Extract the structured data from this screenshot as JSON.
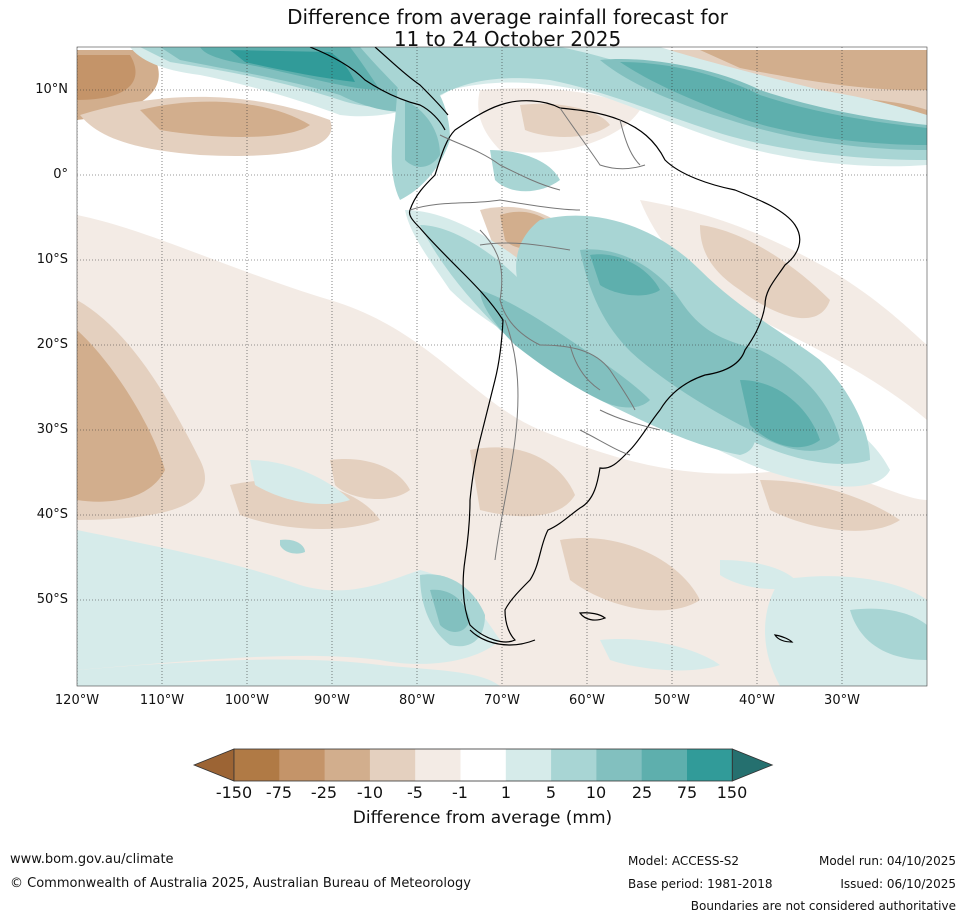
{
  "title": {
    "line1": "Difference from average rainfall forecast for",
    "line2": "11 to 24 October 2025"
  },
  "axes": {
    "lat_labels": [
      "10°N",
      "0°",
      "10°S",
      "20°S",
      "30°S",
      "40°S",
      "50°S"
    ],
    "lon_labels": [
      "120°W",
      "110°W",
      "100°W",
      "90°W",
      "80°W",
      "70°W",
      "60°W",
      "50°W",
      "40°W",
      "30°W"
    ]
  },
  "colorbar": {
    "tick_labels": [
      "-150",
      "-75",
      "-25",
      "-10",
      "-5",
      "-1",
      "1",
      "5",
      "10",
      "25",
      "75",
      "150"
    ],
    "colors": [
      "#9c6434",
      "#b07a45",
      "#c49469",
      "#d2ae8d",
      "#e4d0bf",
      "#f3ebe5",
      "#ffffff",
      "#d6ebea",
      "#a8d5d4",
      "#82c0bf",
      "#5eafad",
      "#319b99",
      "#25706f"
    ],
    "title": "Difference from average (mm)"
  },
  "footer": {
    "url": "www.bom.gov.au/climate",
    "copyright": "© Commonwealth of Australia 2025, Australian Bureau of Meteorology",
    "model": "Model: ACCESS-S2",
    "base_period": "Base period: 1981-2018",
    "model_run": "Model run: 04/10/2025",
    "issued": "Issued: 06/10/2025",
    "disclaimer": "Boundaries are not considered authoritative"
  }
}
